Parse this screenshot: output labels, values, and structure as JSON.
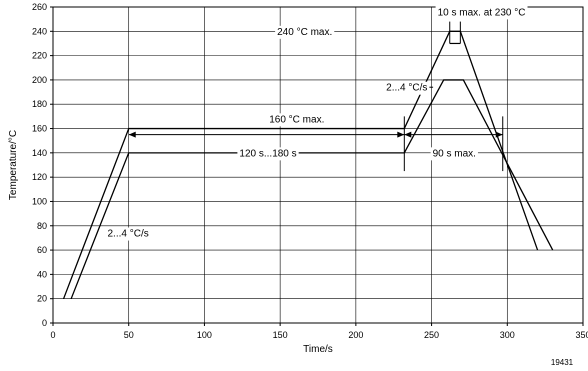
{
  "chart_data": {
    "type": "line",
    "xlabel": "Time/s",
    "ylabel": "Temperature/°C",
    "xlim": [
      0,
      350
    ],
    "ylim": [
      0,
      260
    ],
    "x_ticks": [
      0,
      50,
      100,
      150,
      200,
      250,
      300,
      350
    ],
    "y_ticks": [
      0,
      20,
      40,
      60,
      80,
      100,
      120,
      140,
      160,
      180,
      200,
      220,
      240,
      260
    ],
    "grid": true,
    "series": [
      {
        "x": [
          7,
          50,
          232,
          262,
          269,
          320
        ],
        "y": [
          20,
          160,
          160,
          240,
          240,
          60
        ]
      },
      {
        "x": [
          12,
          50,
          232,
          258,
          271,
          330
        ],
        "y": [
          20,
          140,
          140,
          200,
          200,
          60
        ]
      }
    ],
    "annotations": [
      {
        "text": "240 °C max."
      },
      {
        "text": "10 s max. at 230 °C"
      },
      {
        "text": "2...4 °C/s"
      },
      {
        "text": "160 °C max."
      },
      {
        "text": "120 s...180 s"
      },
      {
        "text": "90 s max."
      },
      {
        "text": "2...4 °C/s"
      }
    ],
    "figure_id": "19431"
  }
}
